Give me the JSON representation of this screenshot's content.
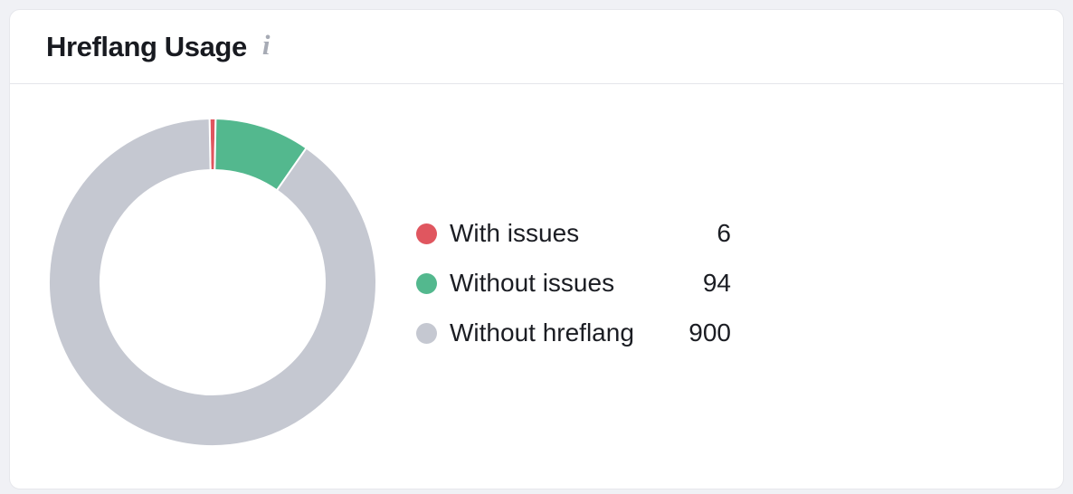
{
  "card": {
    "title": "Hreflang Usage",
    "info_icon": "i"
  },
  "chart_data": {
    "type": "pie",
    "subtype": "donut",
    "title": "Hreflang Usage",
    "legend_position": "right",
    "start_angle_deg": -1.08,
    "categories": [
      "With issues",
      "Without issues",
      "Without hreflang"
    ],
    "series": [
      {
        "name": "With issues",
        "value": 6,
        "color": "#e0565f"
      },
      {
        "name": "Without issues",
        "value": 94,
        "color": "#53b88e"
      },
      {
        "name": "Without hreflang",
        "value": 900,
        "color": "#c5c8d1"
      }
    ],
    "total": 1000
  }
}
